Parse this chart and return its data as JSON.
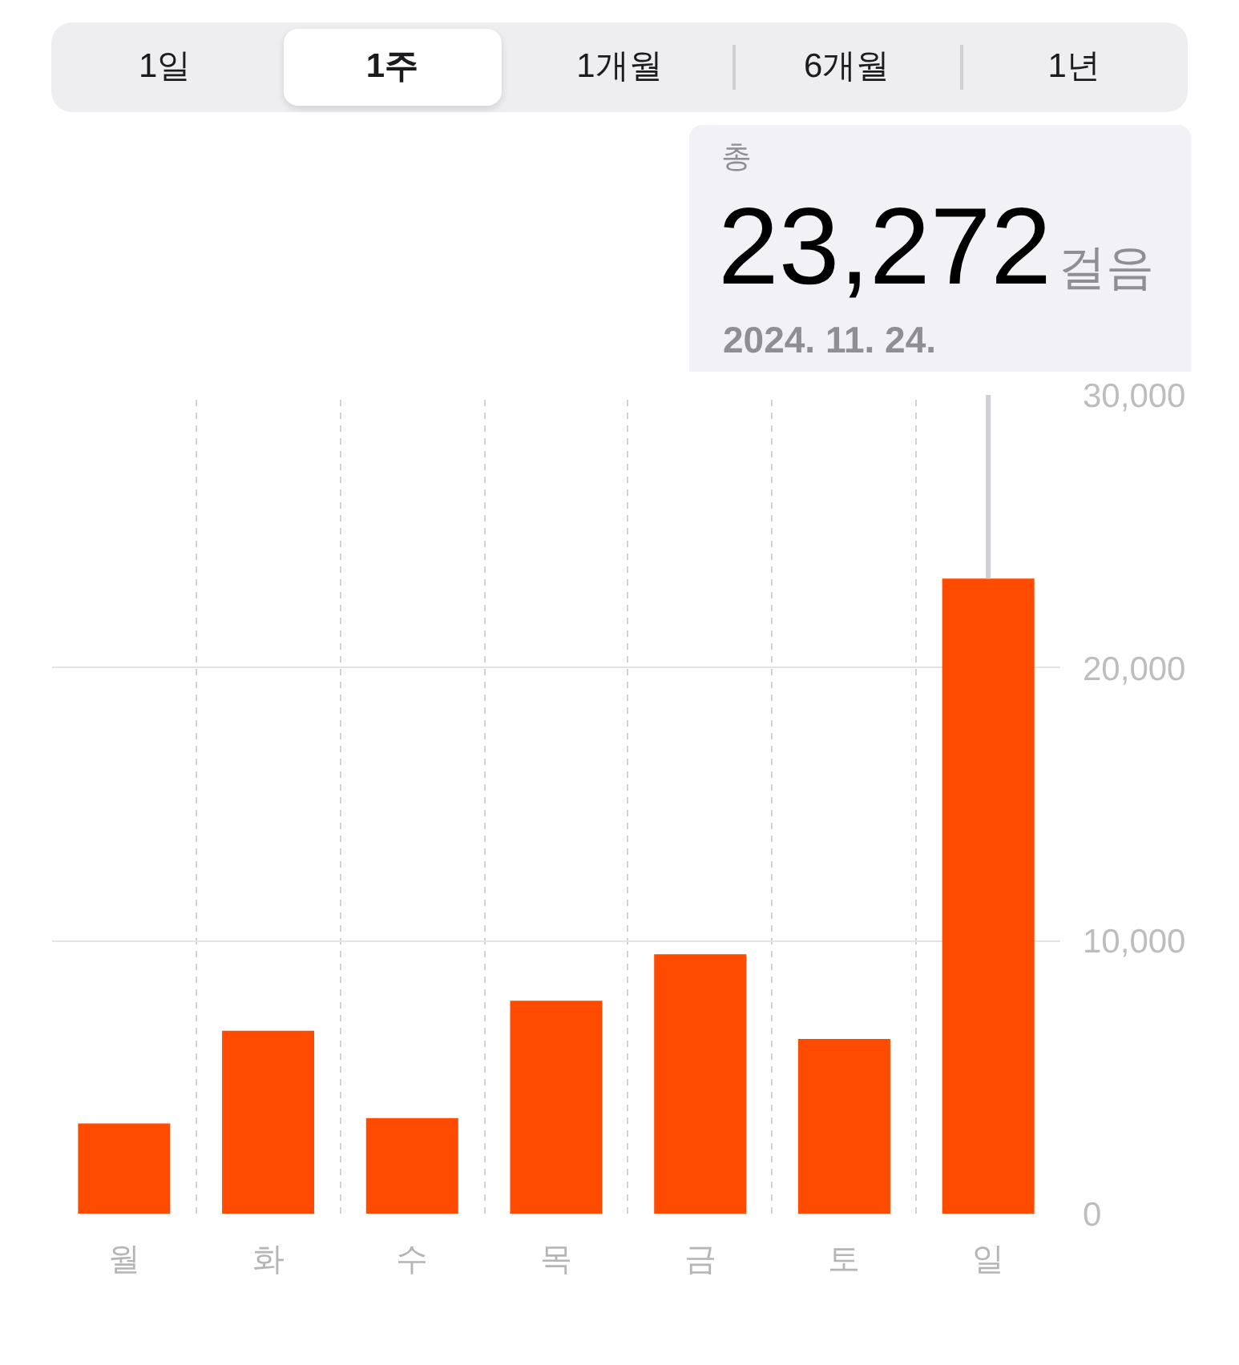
{
  "chart_data": {
    "type": "bar",
    "categories": [
      "월",
      "화",
      "수",
      "목",
      "금",
      "토",
      "일"
    ],
    "values": [
      3300,
      6700,
      3500,
      7800,
      9500,
      6400,
      23272
    ],
    "color": "#ff4b00",
    "ylim": [
      0,
      30000
    ],
    "yticks": [
      0,
      {
        "value": 10000,
        "label": "10,000"
      },
      {
        "value": 20000,
        "label": "20,000"
      },
      {
        "value": 30000,
        "label": "30,000"
      }
    ],
    "grid": true,
    "annotations": [
      "1일",
      "1주",
      "1개월",
      "6개월",
      "1년",
      {
        "text": "23,272",
        "x": "일",
        "y": 23272
      },
      "총",
      "걸음",
      "2024. 11. 24."
    ]
  }
}
